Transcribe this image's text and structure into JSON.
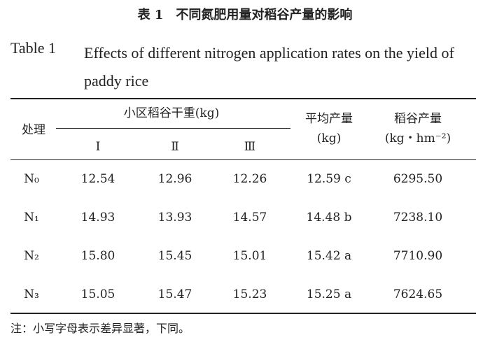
{
  "title_cn": "表 1　不同氮肥用量对稻谷产量的影响",
  "title_en": {
    "label": "Table 1",
    "text": "Effects of different nitrogen application rates on the yield of paddy rice"
  },
  "table": {
    "header": {
      "treatment": "处理",
      "plot_dry_weight": "小区稻谷干重(kg)",
      "replicates": [
        "Ⅰ",
        "Ⅱ",
        "Ⅲ"
      ],
      "average_yield": [
        "平均产量",
        "(kg)"
      ],
      "rice_yield": [
        "稻谷产量",
        "(kg・hm⁻²)"
      ]
    },
    "rows": [
      [
        "N₀",
        "12.54",
        "12.96",
        "12.26",
        "12.59 c",
        "6295.50"
      ],
      [
        "N₁",
        "14.93",
        "13.93",
        "14.57",
        "14.48 b",
        "7238.10"
      ],
      [
        "N₂",
        "15.80",
        "15.45",
        "15.01",
        "15.42 a",
        "7710.90"
      ],
      [
        "N₃",
        "15.05",
        "15.47",
        "15.23",
        "15.25 a",
        "7624.65"
      ]
    ]
  },
  "note": "注：小写字母表示差异显著，下同。"
}
